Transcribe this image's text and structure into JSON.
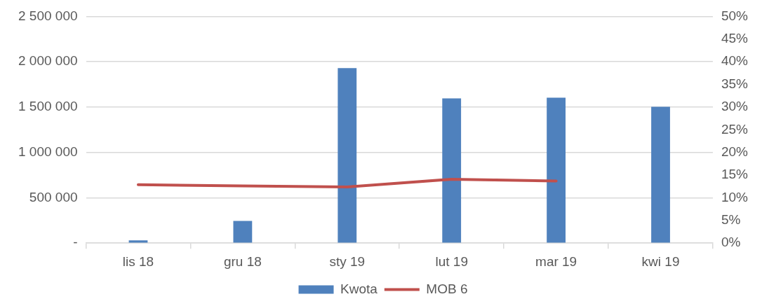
{
  "chart_data": {
    "type": "bar",
    "categories": [
      "lis 18",
      "gru 18",
      "sty 19",
      "lut 19",
      "mar 19",
      "kwi 19"
    ],
    "series": [
      {
        "name": "Kwota",
        "color": "#4f81bd",
        "values": [
          30000,
          245000,
          1930000,
          1595000,
          1603000,
          1503000
        ]
      },
      {
        "name": "MOB 6",
        "type": "line",
        "axis": "y2",
        "color": "#c0504d",
        "values": [
          12.9,
          12.6,
          12.4,
          14.1,
          13.7,
          null
        ]
      }
    ],
    "ylim": [
      0,
      2500000
    ],
    "yticks": [
      {
        "value": 0,
        "label": "-"
      },
      {
        "value": 500000,
        "label": "500 000"
      },
      {
        "value": 1000000,
        "label": "1 000 000"
      },
      {
        "value": 1500000,
        "label": "1 500 000"
      },
      {
        "value": 2000000,
        "label": "2 000 000"
      },
      {
        "value": 2500000,
        "label": "2 500 000"
      }
    ],
    "y2lim": [
      0,
      50
    ],
    "y2ticks": [
      {
        "value": 0,
        "label": "0%"
      },
      {
        "value": 5,
        "label": "5%"
      },
      {
        "value": 10,
        "label": "10%"
      },
      {
        "value": 15,
        "label": "15%"
      },
      {
        "value": 20,
        "label": "20%"
      },
      {
        "value": 25,
        "label": "25%"
      },
      {
        "value": 30,
        "label": "30%"
      },
      {
        "value": 35,
        "label": "35%"
      },
      {
        "value": 40,
        "label": "40%"
      },
      {
        "value": 45,
        "label": "45%"
      },
      {
        "value": 50,
        "label": "50%"
      }
    ],
    "grid": "y",
    "legend": "bottom",
    "marker": "none",
    "line_style": "solid"
  }
}
